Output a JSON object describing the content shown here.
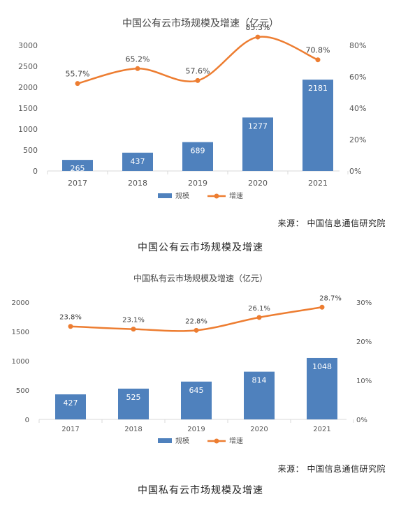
{
  "colors": {
    "bar": "#4f81bd",
    "line": "#ed7d31",
    "axis": "#d9d9d9"
  },
  "chart_data": [
    {
      "type": "bar",
      "title": "中国公有云市场规模及增速（亿元）",
      "categories": [
        "2017",
        "2018",
        "2019",
        "2020",
        "2021"
      ],
      "series": [
        {
          "name": "规模",
          "type": "bar",
          "axis": "left",
          "values": [
            265,
            437,
            689,
            1277,
            2181
          ],
          "labels": [
            "265",
            "437",
            "689",
            "1277",
            "2181"
          ]
        },
        {
          "name": "增速",
          "type": "line",
          "axis": "right",
          "values": [
            55.7,
            65.2,
            57.6,
            85.3,
            70.8
          ],
          "labels": [
            "55.7%",
            "65.2%",
            "57.6%",
            "85.3%",
            "70.8%"
          ]
        }
      ],
      "y_left": {
        "min": 0,
        "max": 3000,
        "ticks": [
          "0",
          "500",
          "1000",
          "1500",
          "2000",
          "2500",
          "3000"
        ]
      },
      "y_right": {
        "min": 0,
        "max": 0.8,
        "ticks": [
          "0%",
          "20%",
          "40%",
          "60%",
          "80%"
        ]
      },
      "legend": [
        "规模",
        "增速"
      ],
      "legend_position": "bottom",
      "grid": false,
      "source": "来源： 中国信息通信研究院",
      "caption": "中国公有云市场规模及增速"
    },
    {
      "type": "bar",
      "title": "中国私有云市场规模及增速（亿元）",
      "categories": [
        "2017",
        "2018",
        "2019",
        "2020",
        "2021"
      ],
      "series": [
        {
          "name": "规模",
          "type": "bar",
          "axis": "left",
          "values": [
            427,
            525,
            645,
            814,
            1048
          ],
          "labels": [
            "427",
            "525",
            "645",
            "814",
            "1048"
          ]
        },
        {
          "name": "增速",
          "type": "line",
          "axis": "right",
          "values": [
            23.8,
            23.1,
            22.8,
            26.1,
            28.7
          ],
          "labels": [
            "23.8%",
            "23.1%",
            "22.8%",
            "26.1%",
            "28.7%"
          ]
        }
      ],
      "y_left": {
        "min": 0,
        "max": 2000,
        "ticks": [
          "0",
          "500",
          "1000",
          "1500",
          "2000"
        ]
      },
      "y_right": {
        "min": 0,
        "max": 0.3,
        "ticks": [
          "0%",
          "10%",
          "20%",
          "30%"
        ]
      },
      "legend": [
        "规模",
        "增速"
      ],
      "legend_position": "bottom",
      "grid": false,
      "source": "来源： 中国信息通信研究院",
      "caption": "中国私有云市场规模及增速"
    }
  ]
}
